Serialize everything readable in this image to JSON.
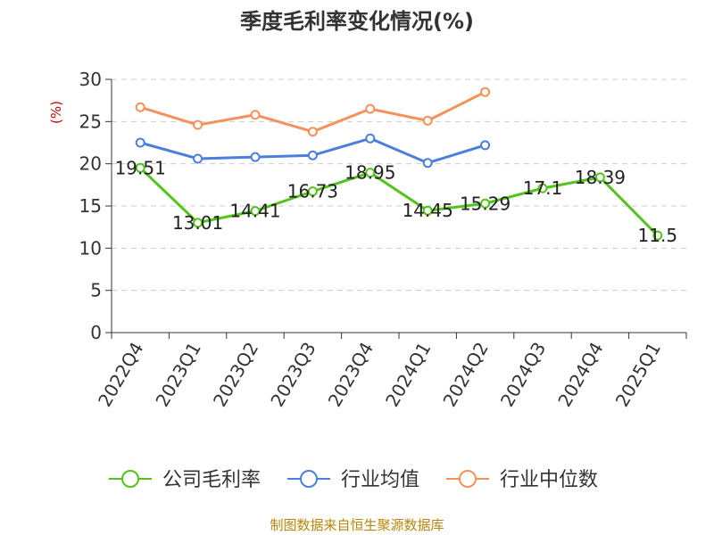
{
  "chart_data": {
    "type": "line",
    "title": "季度毛利率变化情况(%)",
    "ylabel": "(%)",
    "ylim": [
      0,
      30
    ],
    "yticks": [
      0,
      5,
      10,
      15,
      20,
      25,
      30
    ],
    "grid": true,
    "legend": "bottom",
    "categories": [
      "2022Q4",
      "2023Q1",
      "2023Q2",
      "2023Q3",
      "2023Q4",
      "2024Q1",
      "2024Q2",
      "2024Q3",
      "2024Q4",
      "2025Q1"
    ],
    "series": [
      {
        "name": "公司毛利率",
        "color": "#52c41a",
        "values": [
          19.51,
          13.01,
          14.41,
          16.73,
          18.95,
          14.45,
          15.29,
          17.1,
          18.39,
          11.5
        ],
        "labels": [
          "19.51",
          "13.01",
          "14.41",
          "16.73",
          "18.95",
          "14.45",
          "15.29",
          "17.1",
          "18.39",
          "11.5"
        ]
      },
      {
        "name": "行业均值",
        "color": "#4a7fdb",
        "values": [
          22.5,
          20.6,
          20.8,
          21.0,
          23.0,
          20.1,
          22.2,
          null,
          null,
          null
        ]
      },
      {
        "name": "行业中位数",
        "color": "#f5915a",
        "values": [
          26.7,
          24.6,
          25.8,
          23.8,
          26.5,
          25.1,
          28.5,
          null,
          null,
          null
        ]
      }
    ],
    "source": "制图数据来自恒生聚源数据库"
  }
}
